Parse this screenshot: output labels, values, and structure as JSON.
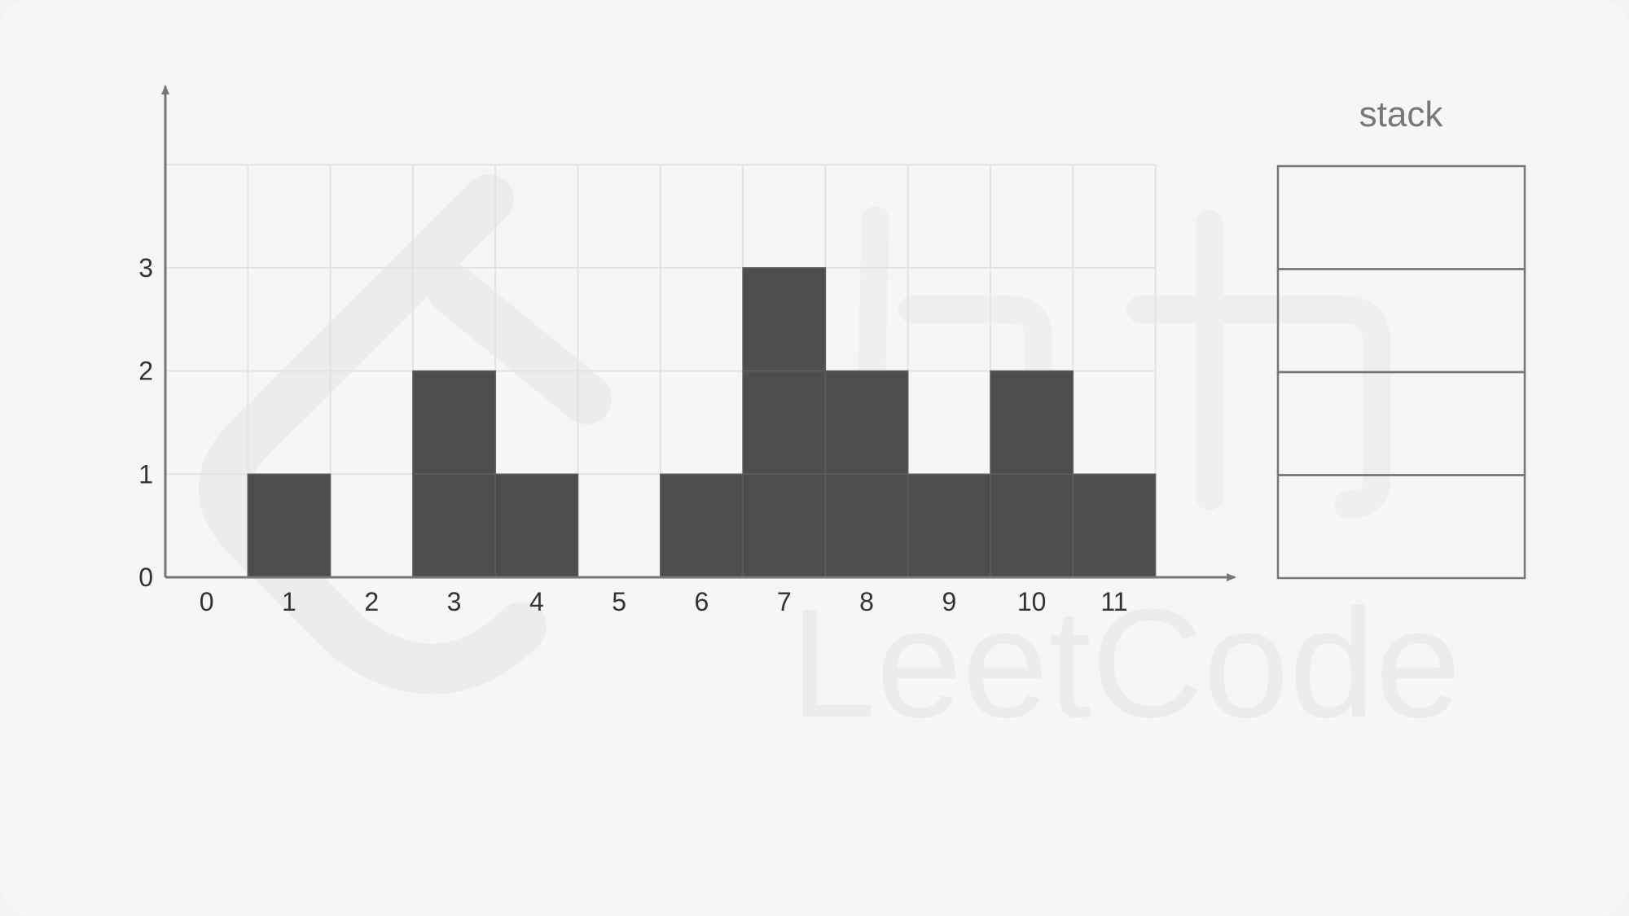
{
  "chart_data": {
    "type": "bar",
    "categories": [
      "0",
      "1",
      "2",
      "3",
      "4",
      "5",
      "6",
      "7",
      "8",
      "9",
      "10",
      "11"
    ],
    "values": [
      0,
      1,
      0,
      2,
      1,
      0,
      1,
      3,
      2,
      1,
      2,
      1
    ],
    "y_ticks": [
      "0",
      "1",
      "2",
      "3"
    ],
    "ylim": [
      0,
      4
    ],
    "grid": true,
    "bar_color": "#4d4d4d"
  },
  "stack_panel": {
    "title": "stack",
    "slot_count": 4
  },
  "watermark": {
    "text": "LeetCode",
    "icon": "leetcode-logo-icon",
    "color": "#ececec"
  },
  "colors": {
    "background": "#f6f6f6",
    "axis": "#777777",
    "grid": "#e3e3e3",
    "stack_border": "#777777"
  }
}
